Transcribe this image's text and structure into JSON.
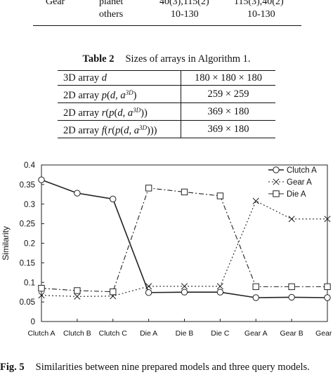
{
  "top_table": {
    "rows": [
      {
        "c1": "Gear",
        "c2": "planet",
        "c3": "40(3),115(2)",
        "c4": "115(3),40(2)"
      },
      {
        "c1": "",
        "c2": "others",
        "c3": "10-130",
        "c4": "10-130"
      }
    ]
  },
  "table2": {
    "label": "Table 2",
    "title": "Sizes of arrays in Algorithm 1.",
    "rows": [
      {
        "name": "3D array",
        "expr": "d",
        "value": "180 × 180 × 180"
      },
      {
        "name": "2D array",
        "expr_func": "p",
        "expr_args": "d, a",
        "expr_sup": "3D",
        "value": "259 × 259"
      },
      {
        "name": "2D array",
        "expr_func": "r",
        "expr_inner": "p",
        "expr_args": "d, a",
        "expr_sup": "3D",
        "value": "369 × 180"
      },
      {
        "name": "2D array",
        "expr_func": "f",
        "expr_mid": "r",
        "expr_inner": "p",
        "expr_args": "d, a",
        "expr_sup": "3D",
        "value": "369 × 180"
      }
    ]
  },
  "chart_data": {
    "type": "line",
    "xlabel": "",
    "ylabel": "Similarity",
    "ylim": [
      0,
      0.4
    ],
    "yticks": [
      "0",
      "0.05",
      "0.1",
      "0.15",
      "0.2",
      "0.25",
      "0.3",
      "0.35",
      "0.4"
    ],
    "categories": [
      "Clutch A",
      "Clutch B",
      "Clutch C",
      "Die A",
      "Die B",
      "Die C",
      "Gear A",
      "Gear B",
      "Gear C"
    ],
    "series": [
      {
        "name": "Clutch A",
        "marker": "circle",
        "dash": "solid",
        "values": [
          0.362,
          0.328,
          0.313,
          0.074,
          0.075,
          0.075,
          0.061,
          0.062,
          0.061
        ]
      },
      {
        "name": "Gear A",
        "marker": "x",
        "dash": "dotted",
        "values": [
          0.067,
          0.064,
          0.065,
          0.09,
          0.09,
          0.09,
          0.308,
          0.262,
          0.262
        ]
      },
      {
        "name": "Die A",
        "marker": "square",
        "dash": "dashdot",
        "values": [
          0.085,
          0.079,
          0.076,
          0.341,
          0.331,
          0.321,
          0.089,
          0.089,
          0.089
        ]
      }
    ],
    "legend": "top-right",
    "grid": false
  },
  "figure": {
    "label": "Fig. 5",
    "caption": "Similarities between nine prepared models and three query models."
  }
}
